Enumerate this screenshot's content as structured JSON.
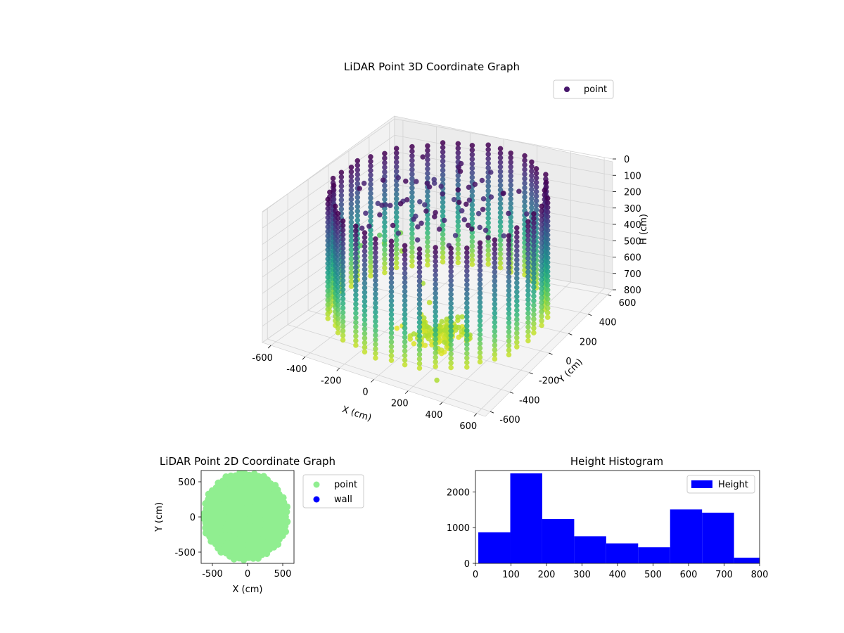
{
  "colors": {
    "viridis_dark": "#440154",
    "viridis_mid": "#21918c",
    "viridis_light": "#fde725",
    "point_2d": "#90ee90",
    "wall_2d": "#0000ff",
    "histogram": "#0000ff"
  },
  "chart_data": [
    {
      "type": "scatter",
      "title": "LiDAR Point 3D Coordinate Graph",
      "xlabel": "X (cm)",
      "ylabel": "Y (cm)",
      "zlabel": "H (cm)",
      "xlim": [
        -650,
        650
      ],
      "ylim": [
        -650,
        650
      ],
      "zlim": [
        0,
        800
      ],
      "z_inverted": true,
      "x_ticks": [
        -600,
        -400,
        -200,
        0,
        200,
        400,
        600
      ],
      "y_ticks": [
        -600,
        -400,
        -200,
        0,
        200,
        400,
        600
      ],
      "z_ticks": [
        0,
        100,
        200,
        300,
        400,
        500,
        600,
        700,
        800
      ],
      "colormap": "viridis",
      "legend": {
        "placement": "top-right",
        "entries": [
          {
            "name": "point"
          }
        ]
      },
      "grid": true,
      "series": [
        {
          "name": "point",
          "description_of_distribution": "ring wall of radius ~550 cm, heights 0-750 cm, color by height",
          "wall_radius": 550,
          "wall_height_range": [
            0,
            750
          ],
          "scattered_points": [
            {
              "x": -640,
              "y": 300,
              "h": 620
            },
            {
              "x": -600,
              "y": 420,
              "h": 600
            },
            {
              "x": -620,
              "y": 500,
              "h": 690
            },
            {
              "x": -560,
              "y": 560,
              "h": 640
            },
            {
              "x": -480,
              "y": 440,
              "h": 680
            },
            {
              "x": -200,
              "y": 180,
              "h": 690
            },
            {
              "x": -90,
              "y": 60,
              "h": 720
            },
            {
              "x": -80,
              "y": -40,
              "h": 740
            },
            {
              "x": -120,
              "y": -160,
              "h": 760
            },
            {
              "x": -140,
              "y": -180,
              "h": 770
            },
            {
              "x": 350,
              "y": -620,
              "h": 700
            }
          ]
        }
      ]
    },
    {
      "type": "scatter",
      "title": "LiDAR Point 2D Coordinate Graph",
      "xlabel": "X (cm)",
      "ylabel": "Y (cm)",
      "xlim": [
        -660,
        660
      ],
      "ylim": [
        -660,
        660
      ],
      "x_ticks": [
        -500,
        0,
        500
      ],
      "y_ticks": [
        -500,
        0,
        500
      ],
      "legend": {
        "placement": "outside-right",
        "entries": [
          {
            "name": "point"
          },
          {
            "name": "wall"
          }
        ]
      },
      "series": [
        {
          "name": "point",
          "extent_x": [
            -640,
            580
          ],
          "extent_y": [
            -620,
            640
          ]
        },
        {
          "name": "wall"
        }
      ]
    },
    {
      "type": "bar",
      "title": "Height Histogram",
      "xlim": [
        0,
        800
      ],
      "ylim": [
        0,
        2600
      ],
      "x_ticks": [
        0,
        100,
        200,
        300,
        400,
        500,
        600,
        700,
        800
      ],
      "y_ticks": [
        0,
        1000,
        2000
      ],
      "legend": {
        "placement": "top-right",
        "entries": [
          {
            "name": "Height"
          }
        ]
      },
      "bin_edges": [
        8,
        98,
        188,
        278,
        368,
        458,
        548,
        638,
        728,
        818
      ],
      "values": [
        870,
        2520,
        1240,
        760,
        560,
        450,
        1510,
        1420,
        160
      ],
      "series_name": "Height"
    }
  ]
}
